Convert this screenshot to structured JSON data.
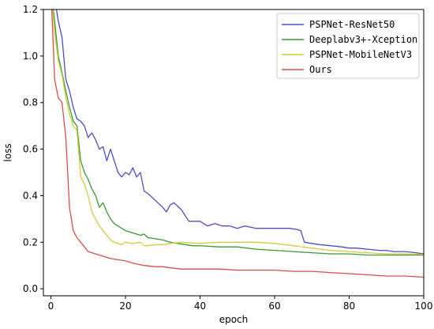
{
  "chart_data": {
    "type": "line",
    "title": "",
    "xlabel": "epoch",
    "ylabel": "loss",
    "xlim": [
      -2,
      100
    ],
    "ylim": [
      -0.03,
      1.2
    ],
    "xticks": [
      0,
      20,
      40,
      60,
      80,
      100
    ],
    "yticks": [
      0.0,
      0.2,
      0.4,
      0.6,
      0.8,
      1.0,
      1.2
    ],
    "xtick_labels": [
      "0",
      "20",
      "40",
      "60",
      "80",
      "100"
    ],
    "ytick_labels": [
      "0.0",
      "0.2",
      "0.4",
      "0.6",
      "0.8",
      "1.0",
      "1.2"
    ],
    "grid": false,
    "legend_position": "top-right",
    "series": [
      {
        "name": "PSPNet-ResNet50",
        "color": "#4c4cc9",
        "x": [
          0,
          1,
          2,
          3,
          4,
          5,
          6,
          7,
          8,
          9,
          10,
          11,
          12,
          13,
          14,
          15,
          16,
          17,
          18,
          19,
          20,
          21,
          22,
          23,
          24,
          25,
          26,
          28,
          30,
          31,
          32,
          33,
          35,
          37,
          40,
          42,
          44,
          46,
          48,
          50,
          52,
          55,
          58,
          60,
          62,
          64,
          66,
          67,
          68,
          70,
          72,
          75,
          78,
          80,
          82,
          85,
          88,
          90,
          92,
          95,
          98,
          100
        ],
        "y": [
          1.3,
          1.25,
          1.15,
          1.08,
          0.9,
          0.85,
          0.78,
          0.73,
          0.72,
          0.7,
          0.65,
          0.67,
          0.64,
          0.6,
          0.61,
          0.55,
          0.6,
          0.55,
          0.5,
          0.48,
          0.5,
          0.49,
          0.52,
          0.48,
          0.5,
          0.42,
          0.41,
          0.38,
          0.35,
          0.33,
          0.36,
          0.37,
          0.34,
          0.29,
          0.29,
          0.27,
          0.28,
          0.27,
          0.27,
          0.26,
          0.27,
          0.26,
          0.26,
          0.26,
          0.26,
          0.26,
          0.255,
          0.25,
          0.2,
          0.195,
          0.19,
          0.185,
          0.18,
          0.175,
          0.175,
          0.17,
          0.165,
          0.165,
          0.16,
          0.16,
          0.155,
          0.15
        ]
      },
      {
        "name": "Deeplabv3+-Xception",
        "color": "#3a9a3a",
        "x": [
          0,
          1,
          2,
          3,
          4,
          5,
          6,
          7,
          8,
          9,
          10,
          11,
          12,
          13,
          14,
          15,
          16,
          17,
          18,
          19,
          20,
          22,
          24,
          25,
          26,
          28,
          30,
          32,
          34,
          36,
          38,
          40,
          45,
          50,
          55,
          60,
          65,
          70,
          75,
          80,
          85,
          90,
          95,
          100
        ],
        "y": [
          1.3,
          1.15,
          1.0,
          0.93,
          0.85,
          0.78,
          0.72,
          0.7,
          0.55,
          0.5,
          0.47,
          0.43,
          0.4,
          0.35,
          0.37,
          0.33,
          0.3,
          0.28,
          0.27,
          0.26,
          0.25,
          0.24,
          0.23,
          0.235,
          0.22,
          0.215,
          0.21,
          0.2,
          0.195,
          0.19,
          0.185,
          0.185,
          0.18,
          0.18,
          0.17,
          0.165,
          0.16,
          0.155,
          0.15,
          0.15,
          0.145,
          0.145,
          0.145,
          0.145
        ]
      },
      {
        "name": "PSPNet-MobileNetV3",
        "color": "#d4cc3a",
        "x": [
          0,
          1,
          2,
          3,
          4,
          5,
          6,
          7,
          8,
          9,
          10,
          11,
          12,
          13,
          14,
          15,
          16,
          17,
          18,
          19,
          20,
          22,
          24,
          25,
          26,
          28,
          30,
          32,
          35,
          40,
          45,
          50,
          55,
          60,
          65,
          70,
          75,
          80,
          85,
          90,
          95,
          100
        ],
        "y": [
          1.3,
          1.1,
          0.98,
          0.92,
          0.82,
          0.75,
          0.7,
          0.68,
          0.48,
          0.45,
          0.4,
          0.33,
          0.3,
          0.27,
          0.25,
          0.23,
          0.21,
          0.2,
          0.195,
          0.19,
          0.2,
          0.195,
          0.2,
          0.185,
          0.185,
          0.19,
          0.19,
          0.195,
          0.2,
          0.195,
          0.2,
          0.2,
          0.2,
          0.195,
          0.185,
          0.175,
          0.165,
          0.16,
          0.155,
          0.15,
          0.15,
          0.148
        ]
      },
      {
        "name": "Ours",
        "color": "#d94c4c",
        "x": [
          0,
          1,
          2,
          3,
          4,
          5,
          6,
          7,
          8,
          9,
          10,
          12,
          14,
          16,
          18,
          20,
          22,
          25,
          28,
          30,
          32,
          35,
          38,
          40,
          45,
          50,
          55,
          60,
          65,
          70,
          75,
          80,
          85,
          90,
          95,
          100
        ],
        "y": [
          1.3,
          0.9,
          0.82,
          0.8,
          0.65,
          0.35,
          0.25,
          0.22,
          0.2,
          0.18,
          0.16,
          0.15,
          0.14,
          0.13,
          0.125,
          0.12,
          0.11,
          0.1,
          0.095,
          0.095,
          0.09,
          0.085,
          0.085,
          0.085,
          0.085,
          0.08,
          0.08,
          0.08,
          0.075,
          0.075,
          0.07,
          0.065,
          0.06,
          0.055,
          0.055,
          0.05
        ]
      }
    ]
  }
}
